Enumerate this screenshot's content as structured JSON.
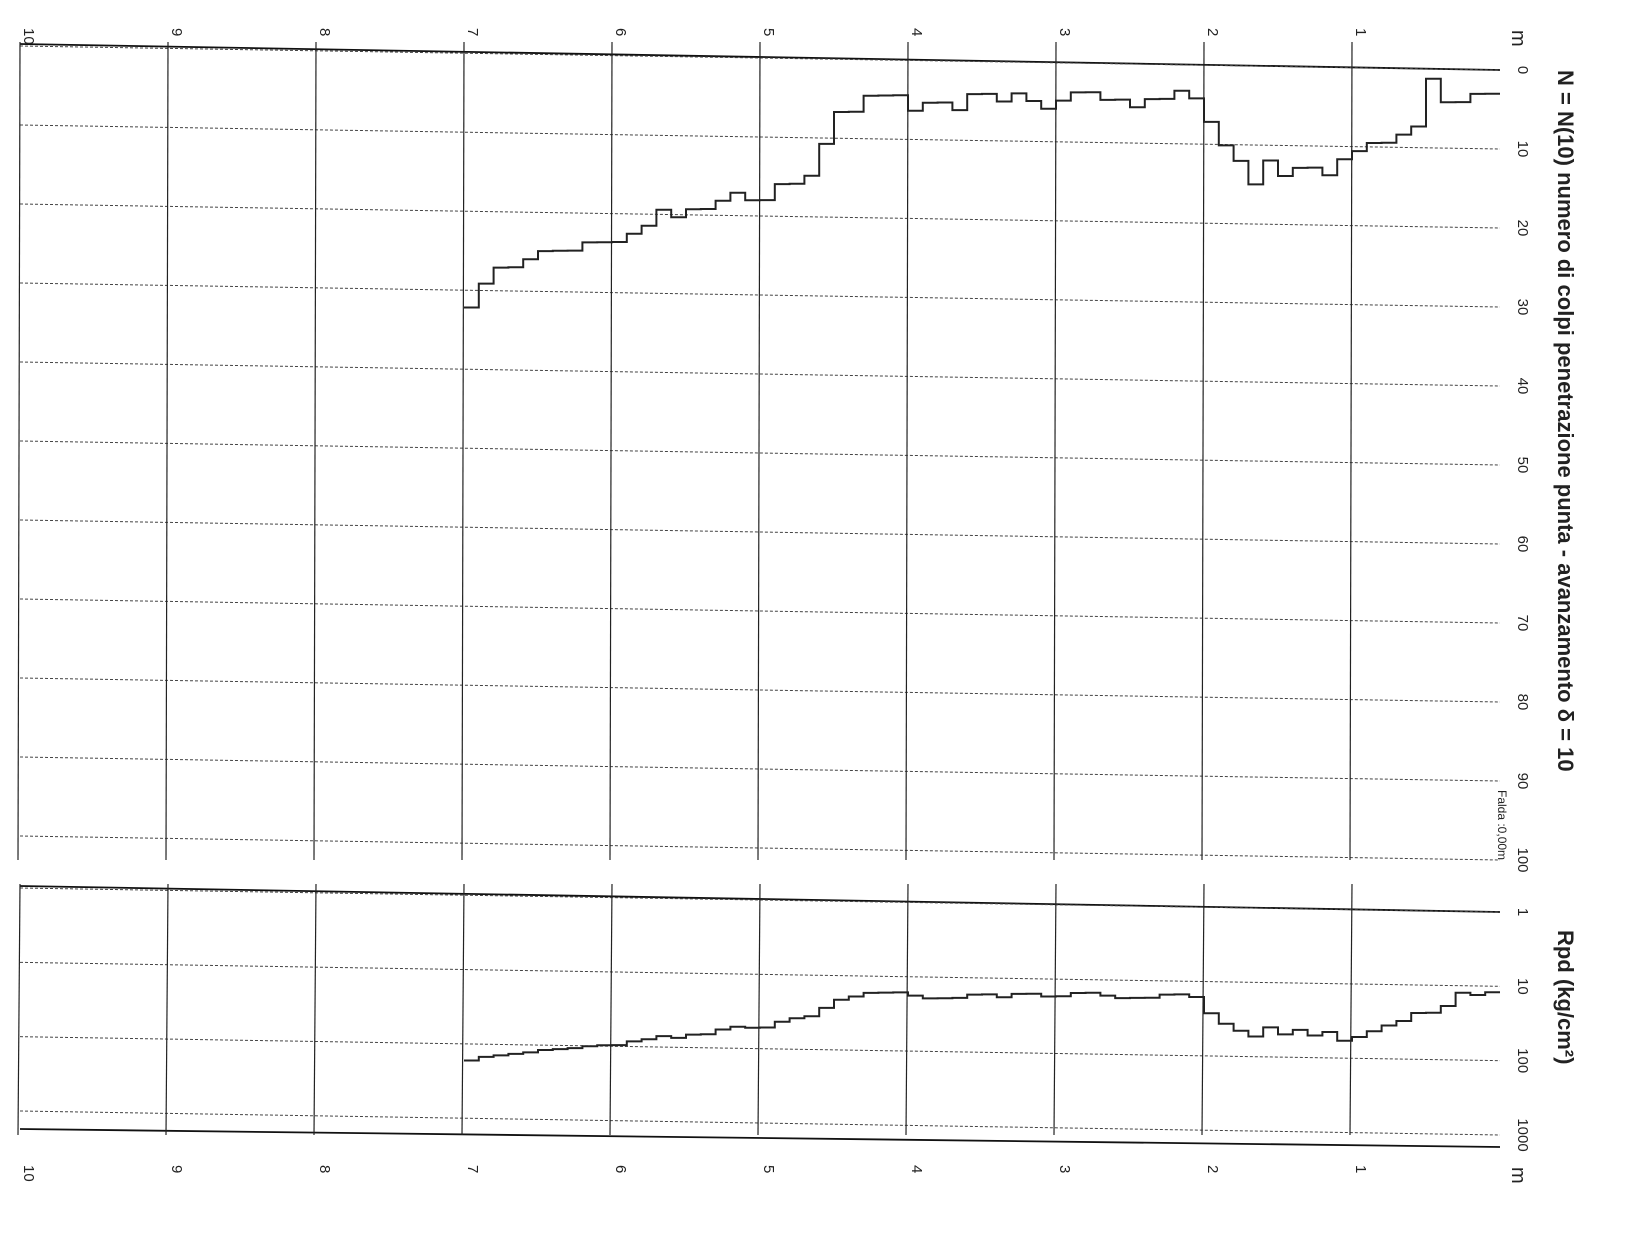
{
  "chart_data": [
    {
      "type": "line",
      "title": "N = N(10) numero di colpi penetrazione punta  -  avanzamento  δ =  10",
      "depth_unit": "m",
      "depth_ticks": [
        "1",
        "2",
        "3",
        "4",
        "5",
        "6",
        "7",
        "8",
        "9",
        "10"
      ],
      "value_ticks": [
        "0",
        "10",
        "20",
        "30",
        "40",
        "50",
        "60",
        "70",
        "80",
        "90",
        "100"
      ],
      "xlim": [
        0,
        10
      ],
      "ylim": [
        0,
        100
      ],
      "water_table_note": "Falda :0,00m",
      "series": [
        {
          "depth": [
            0.0,
            0.1,
            0.2,
            0.3,
            0.4,
            0.5,
            0.6,
            0.7,
            0.8,
            0.9,
            1.0,
            1.1,
            1.2,
            1.3,
            1.4,
            1.5,
            1.6,
            1.7,
            1.8,
            1.9,
            2.0,
            2.1,
            2.2,
            2.3,
            2.4,
            2.5,
            2.6,
            2.7,
            2.8,
            2.9,
            3.0,
            3.1,
            3.2,
            3.3,
            3.4,
            3.5,
            3.6,
            3.7,
            3.8,
            3.9,
            4.0,
            4.1,
            4.2,
            4.3,
            4.4,
            4.5,
            4.6,
            4.7,
            4.8,
            4.9,
            5.0,
            5.1,
            5.2,
            5.3,
            5.4,
            5.5,
            5.6,
            5.7,
            5.8,
            5.9,
            6.0,
            6.1,
            6.2,
            6.3,
            6.4,
            6.5,
            6.6,
            6.7,
            6.8,
            6.9
          ],
          "values": [
            3,
            3,
            4,
            4,
            1,
            7,
            8,
            9,
            9,
            10,
            11,
            13,
            12,
            12,
            13,
            11,
            14,
            11,
            9,
            6,
            3,
            2,
            3,
            3,
            4,
            3,
            3,
            2,
            2,
            3,
            4,
            3,
            2,
            3,
            2,
            2,
            4,
            3,
            3,
            4,
            2,
            2,
            2,
            4,
            4,
            8,
            12,
            13,
            13,
            15,
            15,
            14,
            15,
            16,
            16,
            17,
            16,
            18,
            19,
            20,
            20,
            20,
            21,
            21,
            21,
            22,
            23,
            23,
            25,
            28
          ]
        }
      ]
    },
    {
      "type": "line",
      "title": "Rpd (kg/cm²)",
      "yscale": "log",
      "depth_unit": "m",
      "depth_ticks": [
        "1",
        "2",
        "3",
        "4",
        "5",
        "6",
        "7",
        "8",
        "9",
        "10"
      ],
      "value_ticks": [
        "1",
        "10",
        "100",
        "1000"
      ],
      "xlim": [
        0,
        10
      ],
      "ylim": [
        1,
        1000
      ],
      "series": [
        {
          "depth": [
            0.0,
            0.1,
            0.2,
            0.3,
            0.4,
            0.5,
            0.6,
            0.7,
            0.8,
            0.9,
            1.0,
            1.1,
            1.2,
            1.3,
            1.4,
            1.5,
            1.6,
            1.7,
            1.8,
            1.9,
            2.0,
            2.1,
            2.2,
            2.3,
            2.4,
            2.5,
            2.6,
            2.7,
            2.8,
            2.9,
            3.0,
            3.1,
            3.2,
            3.3,
            3.4,
            3.5,
            3.6,
            3.7,
            3.8,
            3.9,
            4.0,
            4.1,
            4.2,
            4.3,
            4.4,
            4.5,
            4.6,
            4.7,
            4.8,
            4.9,
            5.0,
            5.1,
            5.2,
            5.3,
            5.4,
            5.5,
            5.6,
            5.7,
            5.8,
            5.9,
            6.0,
            6.1,
            6.2,
            6.3,
            6.4,
            6.5,
            6.6,
            6.7,
            6.8,
            6.9
          ],
          "values": [
            12,
            13,
            12,
            18,
            22,
            22,
            28,
            32,
            38,
            45,
            50,
            38,
            42,
            35,
            40,
            32,
            42,
            35,
            28,
            20,
            12,
            11,
            11,
            12,
            12,
            12,
            11,
            10,
            10,
            11,
            11,
            10,
            10,
            11,
            10,
            10,
            11,
            11,
            11,
            10,
            9,
            9,
            9,
            10,
            11,
            14,
            18,
            19,
            21,
            25,
            25,
            24,
            26,
            30,
            30,
            33,
            31,
            34,
            36,
            40,
            40,
            41,
            43,
            44,
            45,
            48,
            50,
            52,
            54,
            60
          ]
        }
      ]
    }
  ]
}
